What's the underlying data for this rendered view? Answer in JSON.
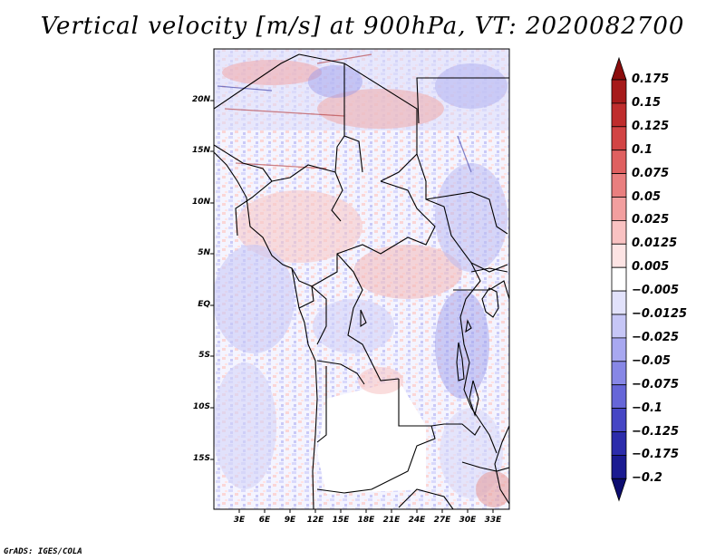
{
  "title": "Vertical velocity [m/s] at 900hPa, VT: 2020082700",
  "credit": "GrADS: IGES/COLA",
  "map": {
    "region": "Central Africa",
    "lon_range": [
      0,
      35
    ],
    "lat_range": [
      -20,
      25
    ],
    "lat_labels": [
      "20N",
      "15N",
      "10N",
      "5N",
      "EQ",
      "5S",
      "10S",
      "15S"
    ],
    "lon_labels": [
      "3E",
      "6E",
      "9E",
      "12E",
      "15E",
      "18E",
      "21E",
      "24E",
      "27E",
      "30E",
      "33E"
    ]
  },
  "colorbar": {
    "labels": [
      "0.175",
      "0.15",
      "0.125",
      "0.1",
      "0.075",
      "0.05",
      "0.025",
      "0.0125",
      "0.005",
      "−0.005",
      "−0.0125",
      "−0.025",
      "−0.05",
      "−0.075",
      "−0.1",
      "−0.125",
      "−0.175",
      "−0.2"
    ],
    "colors": [
      "#8b0d0d",
      "#a61a1a",
      "#bf2d2d",
      "#d24444",
      "#df6060",
      "#e97f7f",
      "#f29f9f",
      "#f9c2c2",
      "#fde4e4",
      "#ffffff",
      "#e2e2fb",
      "#c6c6f6",
      "#a8a8f0",
      "#8787e6",
      "#6666d8",
      "#4646c4",
      "#2c2cab",
      "#1b1b91",
      "#0d0d70"
    ]
  }
}
